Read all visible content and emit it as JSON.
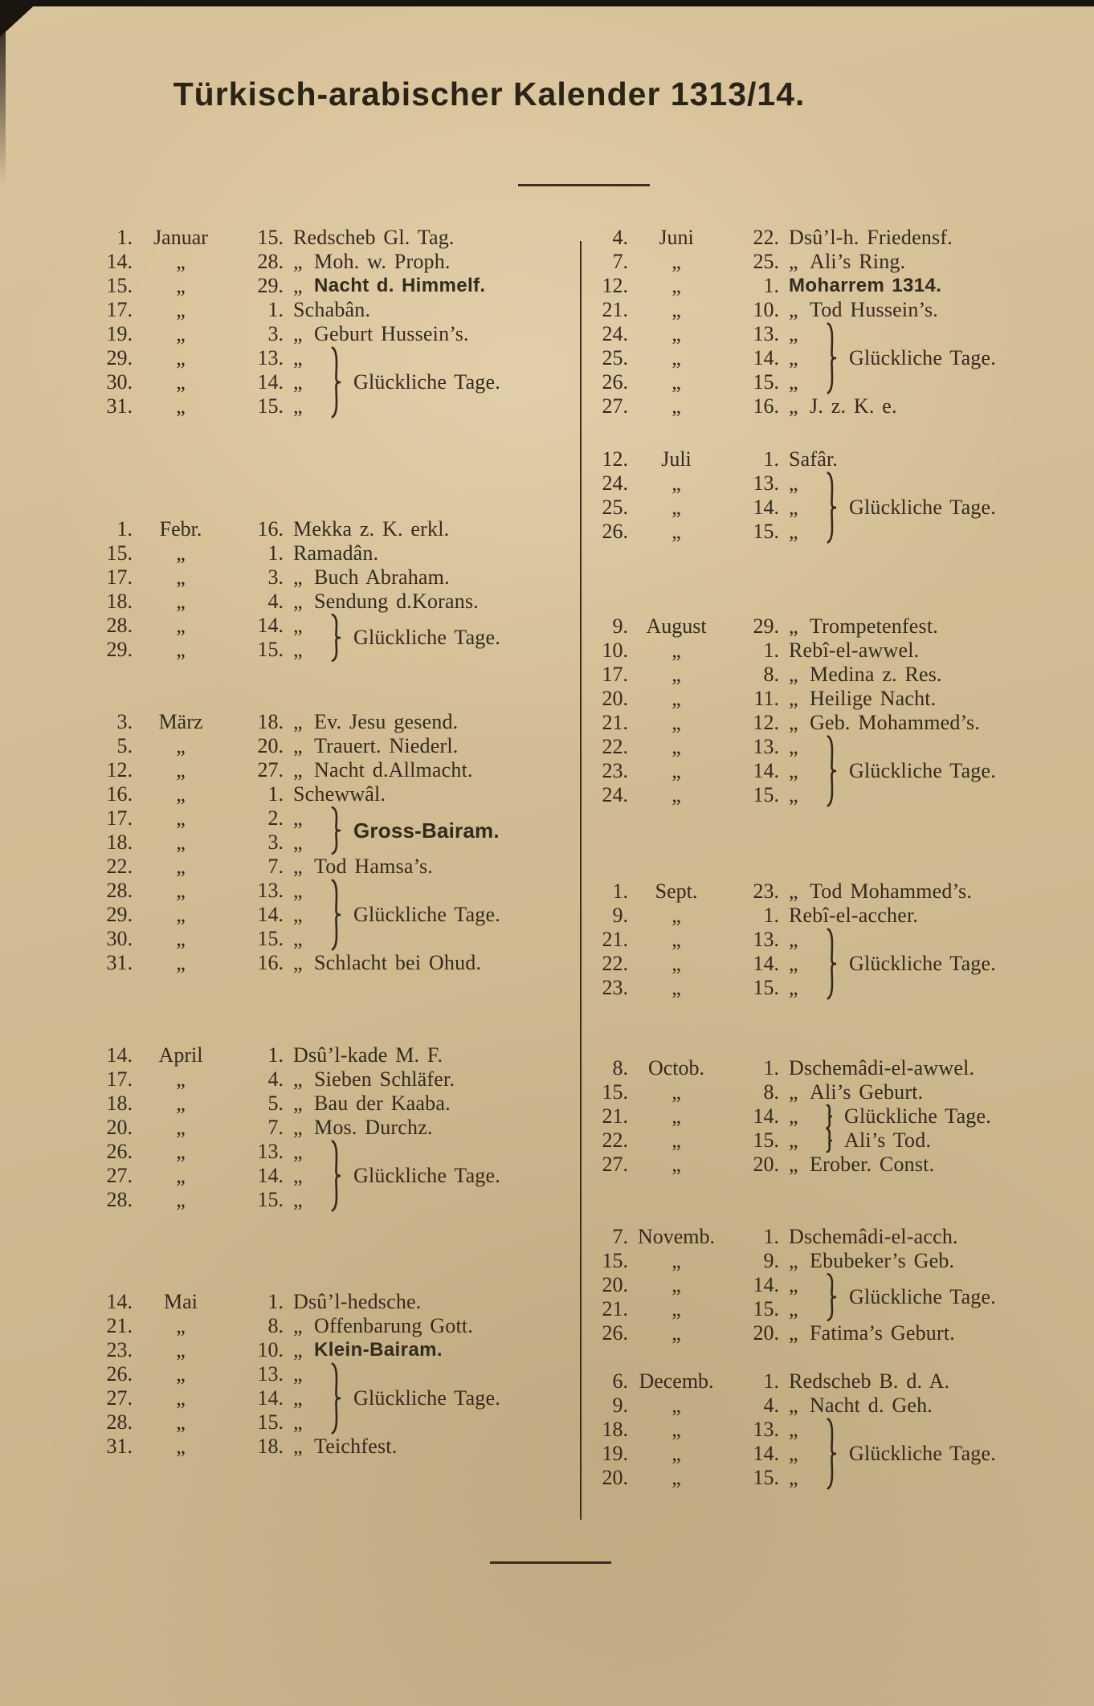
{
  "page": {
    "title": "Türkisch-arabischer Kalender 1313/14.",
    "paper_color": "#d3bd94",
    "ink_color": "#332a1e"
  },
  "ditto_mark": "„",
  "calendar": {
    "columns": [
      {
        "months": [
          {
            "rows": [
              {
                "g": "1.",
                "m": "Januar",
                "i": "15.",
                "d": false,
                "t": "Redscheb Gl. Tag.",
                "b": false
              },
              {
                "g": "14.",
                "m": "",
                "i": "28.",
                "d": true,
                "t": "Moh. w. Proph.",
                "b": false
              },
              {
                "g": "15.",
                "m": "",
                "i": "29.",
                "d": true,
                "t": "Nacht d. Himmelf.",
                "b": true
              },
              {
                "g": "17.",
                "m": "",
                "i": "1.",
                "d": false,
                "t": "Schabân.",
                "b": false
              },
              {
                "g": "19.",
                "m": "",
                "i": "3.",
                "d": true,
                "t": "Geburt Hussein’s.",
                "b": false
              },
              {
                "g": "29.",
                "m": "",
                "i": "13.",
                "d": true,
                "t": "",
                "b": false
              },
              {
                "g": "30.",
                "m": "",
                "i": "14.",
                "d": true,
                "t": "",
                "b": false
              },
              {
                "g": "31.",
                "m": "",
                "i": "15.",
                "d": true,
                "t": "",
                "b": false
              }
            ],
            "braces": [
              {
                "start": 5,
                "count": 3,
                "label": "Glückliche Tage.",
                "bold": false
              }
            ]
          },
          {
            "rows": [
              {
                "g": "1.",
                "m": "Febr.",
                "i": "16.",
                "d": false,
                "t": "Mekka z. K. erkl.",
                "b": false
              },
              {
                "g": "15.",
                "m": "",
                "i": "1.",
                "d": false,
                "t": "Ramadân.",
                "b": false
              },
              {
                "g": "17.",
                "m": "",
                "i": "3.",
                "d": true,
                "t": "Buch Abraham.",
                "b": false
              },
              {
                "g": "18.",
                "m": "",
                "i": "4.",
                "d": true,
                "t": "Sendung d.Korans.",
                "b": false
              },
              {
                "g": "28.",
                "m": "",
                "i": "14.",
                "d": true,
                "t": "",
                "b": false
              },
              {
                "g": "29.",
                "m": "",
                "i": "15.",
                "d": true,
                "t": "",
                "b": false
              }
            ],
            "braces": [
              {
                "start": 4,
                "count": 2,
                "label": "Glückliche Tage.",
                "bold": false
              }
            ]
          },
          {
            "rows": [
              {
                "g": "3.",
                "m": "März",
                "i": "18.",
                "d": true,
                "t": "Ev. Jesu gesend.",
                "b": false
              },
              {
                "g": "5.",
                "m": "",
                "i": "20.",
                "d": true,
                "t": "Trauert. Niederl.",
                "b": false
              },
              {
                "g": "12.",
                "m": "",
                "i": "27.",
                "d": true,
                "t": "Nacht d.Allmacht.",
                "b": false
              },
              {
                "g": "16.",
                "m": "",
                "i": "1.",
                "d": false,
                "t": "Schewwâl.",
                "b": false
              },
              {
                "g": "17.",
                "m": "",
                "i": "2.",
                "d": true,
                "t": "",
                "b": false
              },
              {
                "g": "18.",
                "m": "",
                "i": "3.",
                "d": true,
                "t": "",
                "b": false
              },
              {
                "g": "22.",
                "m": "",
                "i": "7.",
                "d": true,
                "t": "Tod Hamsa’s.",
                "b": false
              },
              {
                "g": "28.",
                "m": "",
                "i": "13.",
                "d": true,
                "t": "",
                "b": false
              },
              {
                "g": "29.",
                "m": "",
                "i": "14.",
                "d": true,
                "t": "",
                "b": false
              },
              {
                "g": "30.",
                "m": "",
                "i": "15.",
                "d": true,
                "t": "",
                "b": false
              },
              {
                "g": "31.",
                "m": "",
                "i": "16.",
                "d": true,
                "t": "Schlacht bei Ohud.",
                "b": false
              }
            ],
            "braces": [
              {
                "start": 4,
                "count": 2,
                "label": "Gross-Bairam.",
                "bold": true
              },
              {
                "start": 7,
                "count": 3,
                "label": "Glückliche Tage.",
                "bold": false
              }
            ]
          },
          {
            "rows": [
              {
                "g": "14.",
                "m": "April",
                "i": "1.",
                "d": false,
                "t": "Dsû’l-kade M. F.",
                "b": false
              },
              {
                "g": "17.",
                "m": "",
                "i": "4.",
                "d": true,
                "t": "Sieben Schläfer.",
                "b": false
              },
              {
                "g": "18.",
                "m": "",
                "i": "5.",
                "d": true,
                "t": "Bau der Kaaba.",
                "b": false
              },
              {
                "g": "20.",
                "m": "",
                "i": "7.",
                "d": true,
                "t": "Mos. Durchz.",
                "b": false
              },
              {
                "g": "26.",
                "m": "",
                "i": "13.",
                "d": true,
                "t": "",
                "b": false
              },
              {
                "g": "27.",
                "m": "",
                "i": "14.",
                "d": true,
                "t": "",
                "b": false
              },
              {
                "g": "28.",
                "m": "",
                "i": "15.",
                "d": true,
                "t": "",
                "b": false
              }
            ],
            "braces": [
              {
                "start": 4,
                "count": 3,
                "label": "Glückliche Tage.",
                "bold": false
              }
            ]
          },
          {
            "rows": [
              {
                "g": "14.",
                "m": "Mai",
                "i": "1.",
                "d": false,
                "t": "Dsû’l-hedsche.",
                "b": false
              },
              {
                "g": "21.",
                "m": "",
                "i": "8.",
                "d": true,
                "t": "Offenbarung Gott.",
                "b": false
              },
              {
                "g": "23.",
                "m": "",
                "i": "10.",
                "d": true,
                "t": "Klein-Bairam.",
                "b": true
              },
              {
                "g": "26.",
                "m": "",
                "i": "13.",
                "d": true,
                "t": "",
                "b": false
              },
              {
                "g": "27.",
                "m": "",
                "i": "14.",
                "d": true,
                "t": "",
                "b": false
              },
              {
                "g": "28.",
                "m": "",
                "i": "15.",
                "d": true,
                "t": "",
                "b": false
              },
              {
                "g": "31.",
                "m": "",
                "i": "18.",
                "d": true,
                "t": "Teichfest.",
                "b": false
              }
            ],
            "braces": [
              {
                "start": 3,
                "count": 3,
                "label": "Glückliche Tage.",
                "bold": false
              }
            ]
          }
        ]
      },
      {
        "months": [
          {
            "rows": [
              {
                "g": "4.",
                "m": "Juni",
                "i": "22.",
                "d": false,
                "t": "Dsû’l-h. Friedensf.",
                "b": false
              },
              {
                "g": "7.",
                "m": "",
                "i": "25.",
                "d": true,
                "t": "Ali’s Ring.",
                "b": false
              },
              {
                "g": "12.",
                "m": "",
                "i": "1.",
                "d": false,
                "t": "Moharrem 1314.",
                "b": true
              },
              {
                "g": "21.",
                "m": "",
                "i": "10.",
                "d": true,
                "t": "Tod Hussein’s.",
                "b": false
              },
              {
                "g": "24.",
                "m": "",
                "i": "13.",
                "d": true,
                "t": "",
                "b": false
              },
              {
                "g": "25.",
                "m": "",
                "i": "14.",
                "d": true,
                "t": "",
                "b": false
              },
              {
                "g": "26.",
                "m": "",
                "i": "15.",
                "d": true,
                "t": "",
                "b": false
              },
              {
                "g": "27.",
                "m": "",
                "i": "16.",
                "d": true,
                "t": "J. z. K. e.",
                "b": false
              }
            ],
            "braces": [
              {
                "start": 4,
                "count": 3,
                "label": "Glückliche Tage.",
                "bold": false
              }
            ]
          },
          {
            "rows": [
              {
                "g": "12.",
                "m": "Juli",
                "i": "1.",
                "d": false,
                "t": "Safâr.",
                "b": false
              },
              {
                "g": "24.",
                "m": "",
                "i": "13.",
                "d": true,
                "t": "",
                "b": false
              },
              {
                "g": "25.",
                "m": "",
                "i": "14.",
                "d": true,
                "t": "",
                "b": false
              },
              {
                "g": "26.",
                "m": "",
                "i": "15.",
                "d": true,
                "t": "",
                "b": false
              }
            ],
            "braces": [
              {
                "start": 1,
                "count": 3,
                "label": "Glückliche Tage.",
                "bold": false
              }
            ]
          },
          {
            "rows": [
              {
                "g": "9.",
                "m": "August",
                "i": "29.",
                "d": true,
                "t": "Trompetenfest.",
                "b": false
              },
              {
                "g": "10.",
                "m": "",
                "i": "1.",
                "d": false,
                "t": "Rebî-el-awwel.",
                "b": false
              },
              {
                "g": "17.",
                "m": "",
                "i": "8.",
                "d": true,
                "t": "Medina z. Res.",
                "b": false
              },
              {
                "g": "20.",
                "m": "",
                "i": "11.",
                "d": true,
                "t": "Heilige Nacht.",
                "b": false
              },
              {
                "g": "21.",
                "m": "",
                "i": "12.",
                "d": true,
                "t": "Geb. Mohammed’s.",
                "b": false
              },
              {
                "g": "22.",
                "m": "",
                "i": "13.",
                "d": true,
                "t": "",
                "b": false
              },
              {
                "g": "23.",
                "m": "",
                "i": "14.",
                "d": true,
                "t": "",
                "b": false
              },
              {
                "g": "24.",
                "m": "",
                "i": "15.",
                "d": true,
                "t": "",
                "b": false
              }
            ],
            "braces": [
              {
                "start": 5,
                "count": 3,
                "label": "Glückliche Tage.",
                "bold": false
              }
            ]
          },
          {
            "rows": [
              {
                "g": "1.",
                "m": "Sept.",
                "i": "23.",
                "d": true,
                "t": "Tod Mohammed’s.",
                "b": false
              },
              {
                "g": "9.",
                "m": "",
                "i": "1.",
                "d": false,
                "t": "Rebî-el-accher.",
                "b": false
              },
              {
                "g": "21.",
                "m": "",
                "i": "13.",
                "d": true,
                "t": "",
                "b": false
              },
              {
                "g": "22.",
                "m": "",
                "i": "14.",
                "d": true,
                "t": "",
                "b": false
              },
              {
                "g": "23.",
                "m": "",
                "i": "15.",
                "d": true,
                "t": "",
                "b": false
              }
            ],
            "braces": [
              {
                "start": 2,
                "count": 3,
                "label": "Glückliche Tage.",
                "bold": false
              }
            ]
          },
          {
            "rows": [
              {
                "g": "8.",
                "m": "Octob.",
                "i": "1.",
                "d": false,
                "t": "Dschemâdi-el-awwel.",
                "b": false
              },
              {
                "g": "15.",
                "m": "",
                "i": "8.",
                "d": true,
                "t": "Ali’s Geburt.",
                "b": false
              },
              {
                "g": "21.",
                "m": "",
                "i": "14.",
                "d": true,
                "t": "",
                "b": false
              },
              {
                "g": "22.",
                "m": "",
                "i": "15.",
                "d": true,
                "t": "",
                "b": false
              },
              {
                "g": "27.",
                "m": "",
                "i": "20.",
                "d": true,
                "t": "Erober. Const.",
                "b": false
              }
            ],
            "braces": [
              {
                "start": 2,
                "count": 1,
                "label": "Glückliche Tage.",
                "bold": false
              },
              {
                "start": 3,
                "count": 1,
                "label": "Ali’s Tod.",
                "bold": false
              }
            ]
          },
          {
            "rows": [
              {
                "g": "7.",
                "m": "Novemb.",
                "i": "1.",
                "d": false,
                "t": "Dschemâdi-el-acch.",
                "b": false
              },
              {
                "g": "15.",
                "m": "",
                "i": "9.",
                "d": true,
                "t": "Ebubeker’s Geb.",
                "b": false
              },
              {
                "g": "20.",
                "m": "",
                "i": "14.",
                "d": true,
                "t": "",
                "b": false
              },
              {
                "g": "21.",
                "m": "",
                "i": "15.",
                "d": true,
                "t": "",
                "b": false
              },
              {
                "g": "26.",
                "m": "",
                "i": "20.",
                "d": true,
                "t": "Fatima’s Geburt.",
                "b": false
              }
            ],
            "braces": [
              {
                "start": 2,
                "count": 2,
                "label": "Glückliche Tage.",
                "bold": false
              }
            ]
          },
          {
            "rows": [
              {
                "g": "6.",
                "m": "Decemb.",
                "i": "1.",
                "d": false,
                "t": "Redscheb B. d. A.",
                "b": false
              },
              {
                "g": "9.",
                "m": "",
                "i": "4.",
                "d": true,
                "t": "Nacht d. Geh.",
                "b": false
              },
              {
                "g": "18.",
                "m": "",
                "i": "13.",
                "d": true,
                "t": "",
                "b": false
              },
              {
                "g": "19.",
                "m": "",
                "i": "14.",
                "d": true,
                "t": "",
                "b": false
              },
              {
                "g": "20.",
                "m": "",
                "i": "15.",
                "d": true,
                "t": "",
                "b": false
              }
            ],
            "braces": [
              {
                "start": 2,
                "count": 3,
                "label": "Glückliche Tage.",
                "bold": false
              }
            ]
          }
        ]
      }
    ]
  }
}
